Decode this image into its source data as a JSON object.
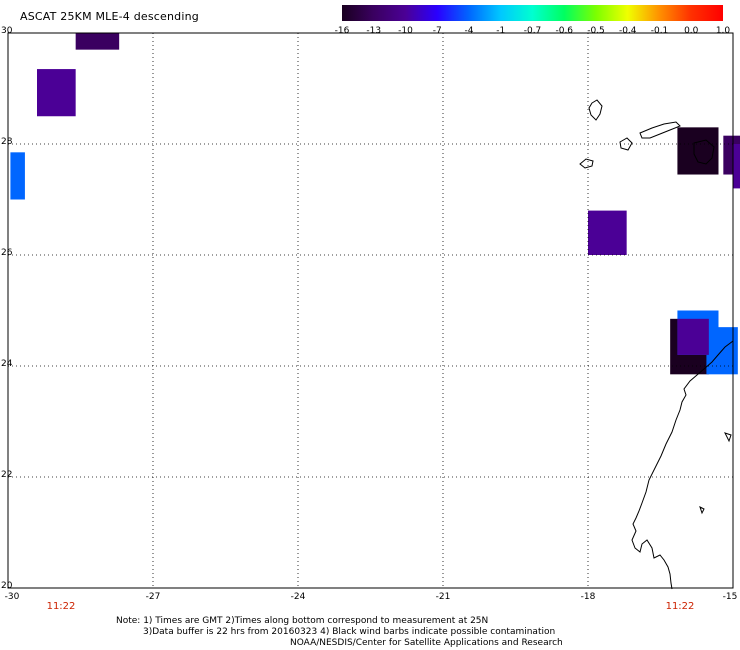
{
  "title": "ASCAT 25KM MLE-4 descending",
  "colorbar": {
    "labels": [
      "-16",
      "-13",
      "-10",
      "-7",
      "-4",
      "-1",
      "-0.7",
      "-0.6",
      "-0.5",
      "-0.4",
      "-0.1",
      "0.0",
      "1.0"
    ],
    "colors": [
      "#1a0020",
      "#3a0060",
      "#4b0096",
      "#2a00ff",
      "#0066ff",
      "#00c8ff",
      "#00ffd0",
      "#00ff60",
      "#7cff00",
      "#f0ff00",
      "#ff9000",
      "#ff3000",
      "#ff0000"
    ]
  },
  "axes": {
    "lat_labels": [
      "30",
      "28",
      "26",
      "24",
      "22",
      "20"
    ],
    "lon_labels": [
      "-30",
      "-27",
      "-24",
      "-21",
      "-18",
      "-15"
    ],
    "time_labels": [
      "11:22",
      "11:22"
    ]
  },
  "cells": [
    {
      "lon0": -28.6,
      "lon1": -27.7,
      "lat0": 29.7,
      "lat1": 30.0,
      "color": "#3a0060"
    },
    {
      "lon0": -29.4,
      "lon1": -28.6,
      "lat0": 28.5,
      "lat1": 29.35,
      "color": "#4b0096"
    },
    {
      "lon0": -29.95,
      "lon1": -29.65,
      "lat0": 27.0,
      "lat1": 27.85,
      "color": "#0066ff"
    },
    {
      "lon0": -16.15,
      "lon1": -15.3,
      "lat0": 27.45,
      "lat1": 28.3,
      "color": "#1a0020"
    },
    {
      "lon0": -15.2,
      "lon1": -14.5,
      "lat0": 27.45,
      "lat1": 28.15,
      "color": "#3a0060"
    },
    {
      "lon0": -15.0,
      "lon1": -14.3,
      "lat0": 27.2,
      "lat1": 28.0,
      "color": "#4b0096"
    },
    {
      "lon0": -18.0,
      "lon1": -17.2,
      "lat0": 26.0,
      "lat1": 26.8,
      "color": "#4b0096"
    },
    {
      "lon0": -16.3,
      "lon1": -15.5,
      "lat0": 23.85,
      "lat1": 24.85,
      "color": "#1a0020"
    },
    {
      "lon0": -15.55,
      "lon1": -14.9,
      "lat0": 23.85,
      "lat1": 24.7,
      "color": "#0066ff"
    },
    {
      "lon0": -16.15,
      "lon1": -15.3,
      "lat0": 24.2,
      "lat1": 25.0,
      "color": "#0066ff"
    },
    {
      "lon0": -16.15,
      "lon1": -15.5,
      "lat0": 24.2,
      "lat1": 24.85,
      "color": "#4b0096"
    }
  ],
  "notes": [
    "Note: 1) Times are GMT 2)Times along bottom correspond to measurement at 25N",
    "3)Data buffer is 22 hrs from 20160323 4) Black wind barbs indicate possible contamination",
    "NOAA/NESDIS/Center for Satellite Applications and Research"
  ]
}
